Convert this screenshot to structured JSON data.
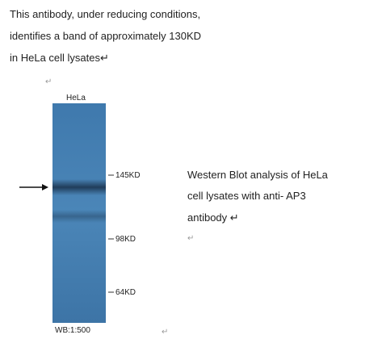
{
  "intro": {
    "lines": [
      "This antibody, under reducing conditions,",
      "identifies a band of approximately 130KD",
      "in HeLa cell lysates↵"
    ],
    "return_mark": "↵"
  },
  "blot": {
    "lane_label": "HeLa",
    "markers": [
      "145KD",
      "98KD",
      "64KD"
    ],
    "footer": "WB:1:500",
    "footer_mark": "↵"
  },
  "caption": {
    "lines": [
      "Western Blot analysis of HeLa",
      "cell lysates with anti- AP3",
      "antibody ↵"
    ],
    "return_mark": "↵"
  }
}
